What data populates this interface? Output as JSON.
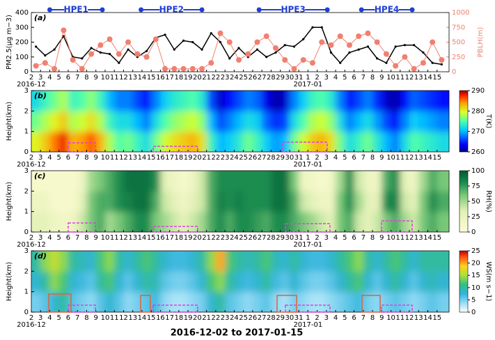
{
  "figure": {
    "xlabel": "2016-12-02 to 2017-01-15",
    "periods": [
      {
        "label": "HPE1",
        "start": 2,
        "end": 7.7
      },
      {
        "label": "HPE2",
        "start": 11.9,
        "end": 18.5
      },
      {
        "label": "HPE3",
        "start": 24.7,
        "end": 32.1
      },
      {
        "label": "HPE4",
        "start": 35.8,
        "end": 41.3
      }
    ],
    "period_color": "#1f3fd6"
  },
  "chart_data": [
    {
      "type": "line",
      "panel": "(a)",
      "categories": [
        "2",
        "3",
        "4",
        "5",
        "6",
        "7",
        "8",
        "9",
        "10",
        "11",
        "12",
        "13",
        "14",
        "15",
        "16",
        "17",
        "18",
        "19",
        "20",
        "21",
        "22",
        "23",
        "24",
        "25",
        "26",
        "27",
        "28",
        "29",
        "30",
        "31",
        "1",
        "2",
        "3",
        "4",
        "5",
        "6",
        "7",
        "8",
        "9",
        "10",
        "11",
        "12",
        "13",
        "14",
        "15"
      ],
      "month_labels": [
        {
          "label": "2016-12",
          "at": 0
        },
        {
          "label": "2017-01",
          "at": 30
        }
      ],
      "ylabel": "PM2.5(μg m−3)",
      "ylim": [
        0,
        400
      ],
      "yticks": [
        0,
        100,
        200,
        300,
        400
      ],
      "y2label": "PBLH(m)",
      "y2lim": [
        0,
        1000
      ],
      "y2ticks": [
        0,
        250,
        500,
        750,
        1000
      ],
      "y2color": "#f08070",
      "series": [
        {
          "color": "#000000",
          "marker": "dot",
          "values": [
            170,
            110,
            150,
            240,
            100,
            90,
            160,
            130,
            120,
            60,
            150,
            100,
            140,
            230,
            250,
            150,
            210,
            200,
            150,
            260,
            200,
            90,
            160,
            100,
            150,
            100,
            130,
            180,
            170,
            220,
            300,
            300,
            130,
            60,
            130,
            150,
            170,
            90,
            60,
            170,
            180,
            180,
            130,
            60,
            50
          ]
        },
        {
          "color": "#f08070",
          "marker": "circle",
          "axis": "y2",
          "values": [
            100,
            150,
            50,
            700,
            200,
            50,
            300,
            450,
            550,
            300,
            500,
            300,
            250,
            550,
            50,
            50,
            50,
            50,
            50,
            150,
            650,
            500,
            200,
            300,
            500,
            600,
            400,
            200,
            50,
            200,
            150,
            500,
            450,
            600,
            450,
            600,
            650,
            500,
            300,
            100,
            250,
            50,
            150,
            500,
            200
          ]
        }
      ]
    },
    {
      "type": "heatmap",
      "panel": "(b)",
      "categories": [
        "2",
        "3",
        "4",
        "5",
        "6",
        "7",
        "8",
        "9",
        "10",
        "11",
        "12",
        "13",
        "14",
        "15",
        "16",
        "17",
        "18",
        "19",
        "20",
        "21",
        "22",
        "23",
        "24",
        "25",
        "26",
        "27",
        "28",
        "29",
        "30",
        "31",
        "1",
        "2",
        "3",
        "4",
        "5",
        "6",
        "7",
        "8",
        "9",
        "10",
        "11",
        "12",
        "13",
        "14",
        "15"
      ],
      "month_labels": [
        {
          "label": "2016-12",
          "at": 0
        },
        {
          "label": "2017-01",
          "at": 30
        }
      ],
      "ylabel": "Height(km)",
      "ylim": [
        0,
        3
      ],
      "yticks": [
        0,
        1,
        2,
        3
      ],
      "y_edges": [
        0,
        1,
        2,
        3
      ],
      "colormap": "jet",
      "clabel": "T(K)",
      "clim": [
        260,
        290
      ],
      "cticks": [
        260,
        270,
        280,
        290
      ],
      "z": [
        [
          280,
          282,
          285,
          288,
          283,
          284,
          286,
          283,
          278,
          275,
          276,
          274,
          272,
          276,
          279,
          281,
          282,
          283,
          281,
          274,
          270,
          271,
          273,
          276,
          274,
          271,
          269,
          270,
          276,
          279,
          282,
          283,
          281,
          276,
          272,
          274,
          276,
          273,
          270,
          268,
          272,
          275,
          274,
          273,
          272
        ],
        [
          276,
          278,
          280,
          282,
          278,
          279,
          281,
          278,
          274,
          272,
          272,
          270,
          268,
          272,
          275,
          277,
          278,
          279,
          277,
          270,
          266,
          268,
          270,
          272,
          271,
          267,
          265,
          266,
          272,
          275,
          278,
          279,
          277,
          272,
          268,
          270,
          272,
          269,
          266,
          264,
          268,
          271,
          270,
          269,
          268
        ],
        [
          272,
          274,
          276,
          278,
          274,
          275,
          277,
          274,
          270,
          268,
          268,
          266,
          264,
          268,
          271,
          273,
          274,
          275,
          273,
          266,
          262,
          264,
          266,
          268,
          267,
          263,
          261,
          262,
          268,
          271,
          274,
          275,
          273,
          268,
          264,
          266,
          268,
          265,
          262,
          261,
          264,
          267,
          266,
          265,
          264
        ]
      ]
    },
    {
      "type": "heatmap",
      "panel": "(c)",
      "categories": [
        "2",
        "3",
        "4",
        "5",
        "6",
        "7",
        "8",
        "9",
        "10",
        "11",
        "12",
        "13",
        "14",
        "15",
        "16",
        "17",
        "18",
        "19",
        "20",
        "21",
        "22",
        "23",
        "24",
        "25",
        "26",
        "27",
        "28",
        "29",
        "30",
        "31",
        "1",
        "2",
        "3",
        "4",
        "5",
        "6",
        "7",
        "8",
        "9",
        "10",
        "11",
        "12",
        "13",
        "14",
        "15"
      ],
      "month_labels": [
        {
          "label": "2016-12",
          "at": 0
        },
        {
          "label": "2017-01",
          "at": 30
        }
      ],
      "ylabel": "Height(km)",
      "ylim": [
        0,
        3
      ],
      "yticks": [
        0,
        1,
        2,
        3
      ],
      "y_edges": [
        0,
        1,
        2,
        3
      ],
      "colormap": "greens",
      "clabel": "RH(%)",
      "clim": [
        0,
        100
      ],
      "cticks": [
        0,
        25,
        50,
        75,
        100
      ],
      "z": [
        [
          30,
          30,
          20,
          15,
          20,
          40,
          60,
          70,
          50,
          60,
          70,
          80,
          80,
          60,
          50,
          40,
          30,
          40,
          50,
          70,
          80,
          70,
          80,
          80,
          75,
          70,
          80,
          80,
          70,
          60,
          50,
          40,
          30,
          60,
          70,
          40,
          30,
          40,
          60,
          70,
          50,
          40,
          60,
          70,
          60
        ],
        [
          20,
          20,
          10,
          10,
          10,
          30,
          60,
          70,
          70,
          80,
          85,
          90,
          90,
          70,
          40,
          30,
          20,
          30,
          40,
          70,
          85,
          80,
          85,
          80,
          80,
          80,
          90,
          90,
          70,
          40,
          30,
          20,
          20,
          60,
          80,
          50,
          30,
          30,
          80,
          85,
          40,
          30,
          60,
          80,
          70
        ],
        [
          10,
          10,
          10,
          10,
          10,
          20,
          50,
          60,
          70,
          80,
          90,
          90,
          90,
          80,
          30,
          20,
          10,
          20,
          40,
          70,
          80,
          80,
          80,
          80,
          80,
          80,
          90,
          90,
          60,
          20,
          15,
          10,
          15,
          50,
          80,
          40,
          20,
          20,
          70,
          80,
          30,
          20,
          50,
          70,
          60
        ]
      ]
    },
    {
      "type": "heatmap",
      "panel": "(d)",
      "categories": [
        "2",
        "3",
        "4",
        "5",
        "6",
        "7",
        "8",
        "9",
        "10",
        "11",
        "12",
        "13",
        "14",
        "15",
        "16",
        "17",
        "18",
        "19",
        "20",
        "21",
        "22",
        "23",
        "24",
        "25",
        "26",
        "27",
        "28",
        "29",
        "30",
        "31",
        "1",
        "2",
        "3",
        "4",
        "5",
        "6",
        "7",
        "8",
        "9",
        "10",
        "11",
        "12",
        "13",
        "14",
        "15"
      ],
      "month_labels": [
        {
          "label": "2016-12",
          "at": 0
        },
        {
          "label": "2017-01",
          "at": 30
        }
      ],
      "ylabel": "Height(km)",
      "ylim": [
        0,
        3
      ],
      "yticks": [
        0,
        1,
        2,
        3
      ],
      "y_edges": [
        0,
        1,
        2,
        3
      ],
      "colormap": "wind",
      "clabel": "WS(m s−1)",
      "clim": [
        0,
        25
      ],
      "cticks": [
        0,
        5,
        10,
        15,
        20,
        25
      ],
      "z": [
        [
          5,
          6,
          8,
          10,
          6,
          5,
          4,
          6,
          8,
          6,
          4,
          5,
          6,
          7,
          4,
          3,
          3,
          4,
          5,
          8,
          10,
          6,
          5,
          4,
          5,
          6,
          4,
          3,
          5,
          4,
          3,
          3,
          4,
          5,
          6,
          7,
          5,
          4,
          5,
          6,
          5,
          4,
          5,
          6,
          5
        ],
        [
          8,
          10,
          14,
          12,
          8,
          7,
          6,
          10,
          12,
          8,
          6,
          8,
          10,
          9,
          6,
          5,
          5,
          6,
          8,
          12,
          14,
          10,
          8,
          7,
          8,
          10,
          7,
          6,
          8,
          6,
          5,
          5,
          6,
          8,
          10,
          12,
          8,
          6,
          8,
          10,
          8,
          6,
          8,
          9,
          8
        ],
        [
          10,
          14,
          16,
          14,
          10,
          9,
          8,
          12,
          14,
          10,
          8,
          10,
          12,
          10,
          8,
          7,
          7,
          8,
          10,
          14,
          20,
          12,
          10,
          9,
          10,
          12,
          9,
          8,
          10,
          8,
          7,
          7,
          8,
          10,
          12,
          14,
          10,
          8,
          10,
          12,
          10,
          8,
          10,
          10,
          10
        ]
      ]
    }
  ]
}
